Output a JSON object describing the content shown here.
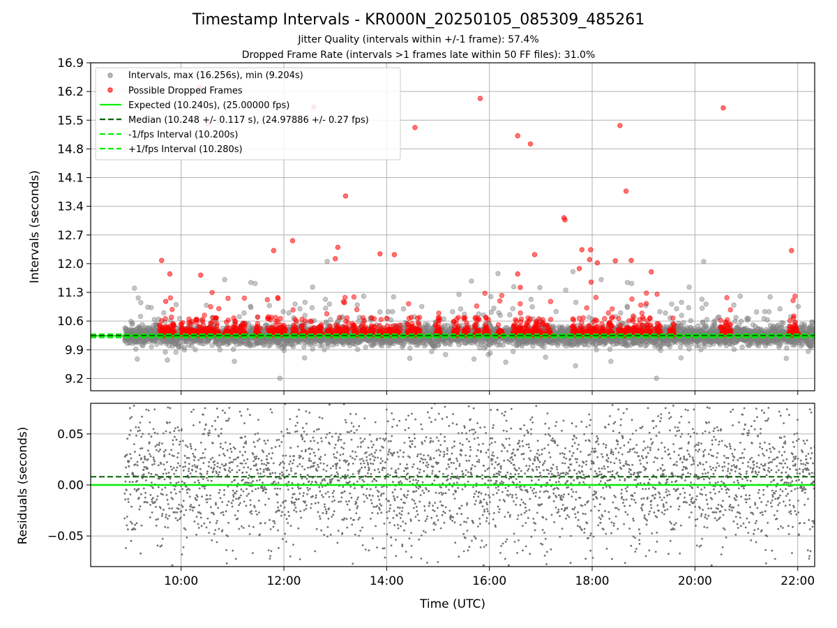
{
  "figure": {
    "title": "Timestamp Intervals - KR000N_20250105_085309_485261",
    "subtitle_1": "Jitter Quality (intervals within +/-1 frame): 57.4%",
    "subtitle_2": "Dropped Frame Rate (intervals >1 frames late within 50 FF files): 31.0%"
  },
  "chart_data": [
    {
      "type": "scatter",
      "panel": "top",
      "ylabel": "Intervals (seconds)",
      "xlabel": "",
      "xlim_hours": [
        8.24,
        22.33
      ],
      "ylim": [
        8.9,
        16.9
      ],
      "x_tick_labels": [
        "10:00",
        "12:00",
        "14:00",
        "16:00",
        "18:00",
        "20:00",
        "22:00"
      ],
      "x_tick_hours": [
        10,
        12,
        14,
        16,
        18,
        20,
        22
      ],
      "y_ticks": [
        9.2,
        9.9,
        10.6,
        11.3,
        12.0,
        12.7,
        13.4,
        14.1,
        14.8,
        15.5,
        16.2,
        16.9
      ],
      "y_tick_labels": [
        "9.2",
        "9.9",
        "10.6",
        "11.3",
        "12.0",
        "12.7",
        "13.4",
        "14.1",
        "14.8",
        "15.5",
        "16.2",
        "16.9"
      ],
      "grid": true,
      "legend_position": "upper-left",
      "legend": [
        {
          "label": "Intervals, max (16.256s), min (9.204s)",
          "kind": "marker",
          "color": "#808080"
        },
        {
          "label": "Possible Dropped Frames",
          "kind": "marker",
          "color": "#ff0000"
        },
        {
          "label": "Expected (10.240s), (25.00000 fps)",
          "kind": "solid",
          "color": "#00ee00"
        },
        {
          "label": "Median (10.248 +/- 0.117 s), (24.97886 +/- 0.27 fps)",
          "kind": "dashed",
          "color": "#006400"
        },
        {
          "label": "-1/fps Interval (10.200s)",
          "kind": "dashed",
          "color": "#00ee00"
        },
        {
          "label": "+1/fps Interval (10.280s)",
          "kind": "dashed",
          "color": "#00ee00"
        }
      ],
      "reference_lines": {
        "expected": 10.24,
        "median": 10.248,
        "minus_one_frame": 10.2,
        "plus_one_frame": 10.28
      },
      "series": [
        {
          "name": "Intervals, max (16.256s), min (9.204s)",
          "color": "#808080",
          "x_start_hour": 8.9,
          "x_end_hour": 22.33,
          "count": 4700,
          "median": 10.248,
          "std": 0.117,
          "min": 9.204,
          "max": 16.256
        },
        {
          "name": "Possible Dropped Frames",
          "color": "#ff0000",
          "approx_count": 1450,
          "notable_points": [
            {
              "x": 9.62,
              "y": 12.08
            },
            {
              "x": 9.7,
              "y": 11.08
            },
            {
              "x": 9.78,
              "y": 11.75
            },
            {
              "x": 10.36,
              "y": 16.3
            },
            {
              "x": 10.38,
              "y": 11.72
            },
            {
              "x": 10.52,
              "y": 15.42
            },
            {
              "x": 11.8,
              "y": 12.32
            },
            {
              "x": 12.17,
              "y": 12.56
            },
            {
              "x": 12.58,
              "y": 15.82
            },
            {
              "x": 13.0,
              "y": 12.12
            },
            {
              "x": 13.05,
              "y": 12.4
            },
            {
              "x": 13.2,
              "y": 13.65
            },
            {
              "x": 13.18,
              "y": 11.05
            },
            {
              "x": 13.87,
              "y": 12.24
            },
            {
              "x": 14.15,
              "y": 12.22
            },
            {
              "x": 14.55,
              "y": 15.32
            },
            {
              "x": 15.82,
              "y": 16.03
            },
            {
              "x": 16.55,
              "y": 15.12
            },
            {
              "x": 16.55,
              "y": 11.75
            },
            {
              "x": 16.6,
              "y": 11.42
            },
            {
              "x": 16.8,
              "y": 14.92
            },
            {
              "x": 16.88,
              "y": 12.22
            },
            {
              "x": 17.45,
              "y": 13.12
            },
            {
              "x": 17.47,
              "y": 13.07
            },
            {
              "x": 17.75,
              "y": 11.88
            },
            {
              "x": 17.8,
              "y": 12.34
            },
            {
              "x": 17.95,
              "y": 12.1
            },
            {
              "x": 17.98,
              "y": 11.55
            },
            {
              "x": 17.97,
              "y": 12.34
            },
            {
              "x": 18.1,
              "y": 12.02
            },
            {
              "x": 18.45,
              "y": 12.07
            },
            {
              "x": 18.54,
              "y": 15.37
            },
            {
              "x": 18.66,
              "y": 13.77
            },
            {
              "x": 18.76,
              "y": 12.08
            },
            {
              "x": 19.15,
              "y": 11.8
            },
            {
              "x": 20.55,
              "y": 15.8
            },
            {
              "x": 21.88,
              "y": 12.32
            }
          ]
        }
      ]
    },
    {
      "type": "scatter",
      "panel": "bottom",
      "ylabel": "Residuals (seconds)",
      "xlabel": "Time (UTC)",
      "xlim_hours": [
        8.24,
        22.33
      ],
      "ylim": [
        -0.08,
        0.08
      ],
      "x_tick_labels": [
        "10:00",
        "12:00",
        "14:00",
        "16:00",
        "18:00",
        "20:00",
        "22:00"
      ],
      "x_tick_hours": [
        10,
        12,
        14,
        16,
        18,
        20,
        22
      ],
      "y_ticks": [
        -0.05,
        0.0,
        0.05
      ],
      "y_tick_labels": [
        "−0.05",
        "0.00",
        "0.05"
      ],
      "grid": true,
      "reference_lines": {
        "expected": 0.0,
        "median": 0.008
      },
      "series": [
        {
          "name": "Residuals",
          "color": "#707070",
          "x_start_hour": 8.9,
          "x_end_hour": 22.33,
          "count": 3300,
          "std": 0.04
        }
      ]
    }
  ]
}
